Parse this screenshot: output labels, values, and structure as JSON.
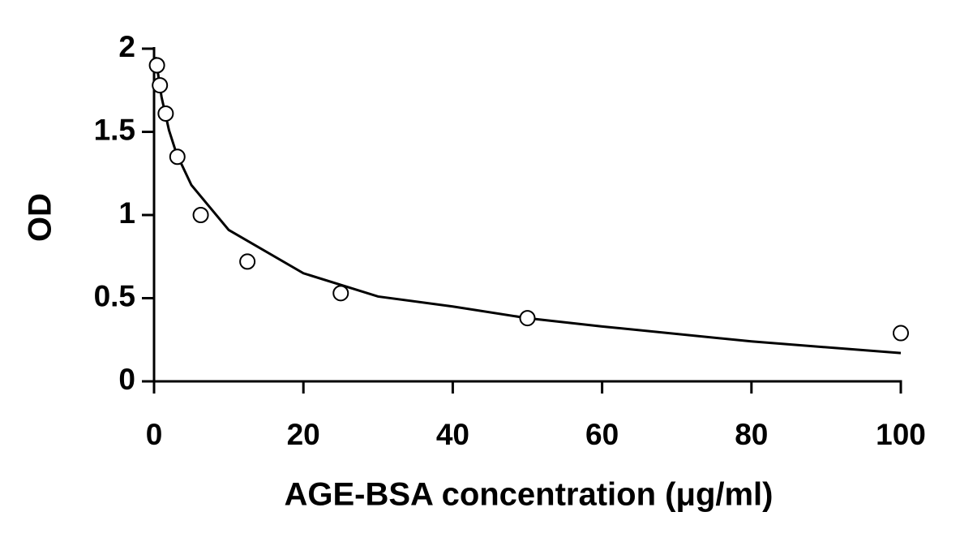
{
  "chart_data": {
    "type": "scatter",
    "xlabel": "AGE-BSA concentration (μg/ml)",
    "ylabel": "OD",
    "xlim": [
      0,
      100
    ],
    "xticks": [
      0,
      20,
      40,
      60,
      80,
      100
    ],
    "ylim": [
      0,
      2
    ],
    "yticks": [
      0,
      0.5,
      1,
      1.5,
      2
    ],
    "series": [
      {
        "mode": "markers",
        "color": "#000000",
        "x": [
          0.39,
          0.78,
          1.56,
          3.125,
          6.25,
          12.5,
          25,
          50,
          100
        ],
        "values": [
          1.9,
          1.78,
          1.61,
          1.35,
          1.0,
          0.72,
          0.53,
          0.38,
          0.29
        ]
      },
      {
        "mode": "line",
        "color": "#000000",
        "x": [
          0.2,
          1,
          2,
          3,
          5,
          10,
          20,
          30,
          40,
          50,
          60,
          80,
          100
        ],
        "values": [
          1.95,
          1.71,
          1.51,
          1.37,
          1.18,
          0.91,
          0.65,
          0.51,
          0.45,
          0.38,
          0.33,
          0.24,
          0.17
        ]
      }
    ]
  }
}
